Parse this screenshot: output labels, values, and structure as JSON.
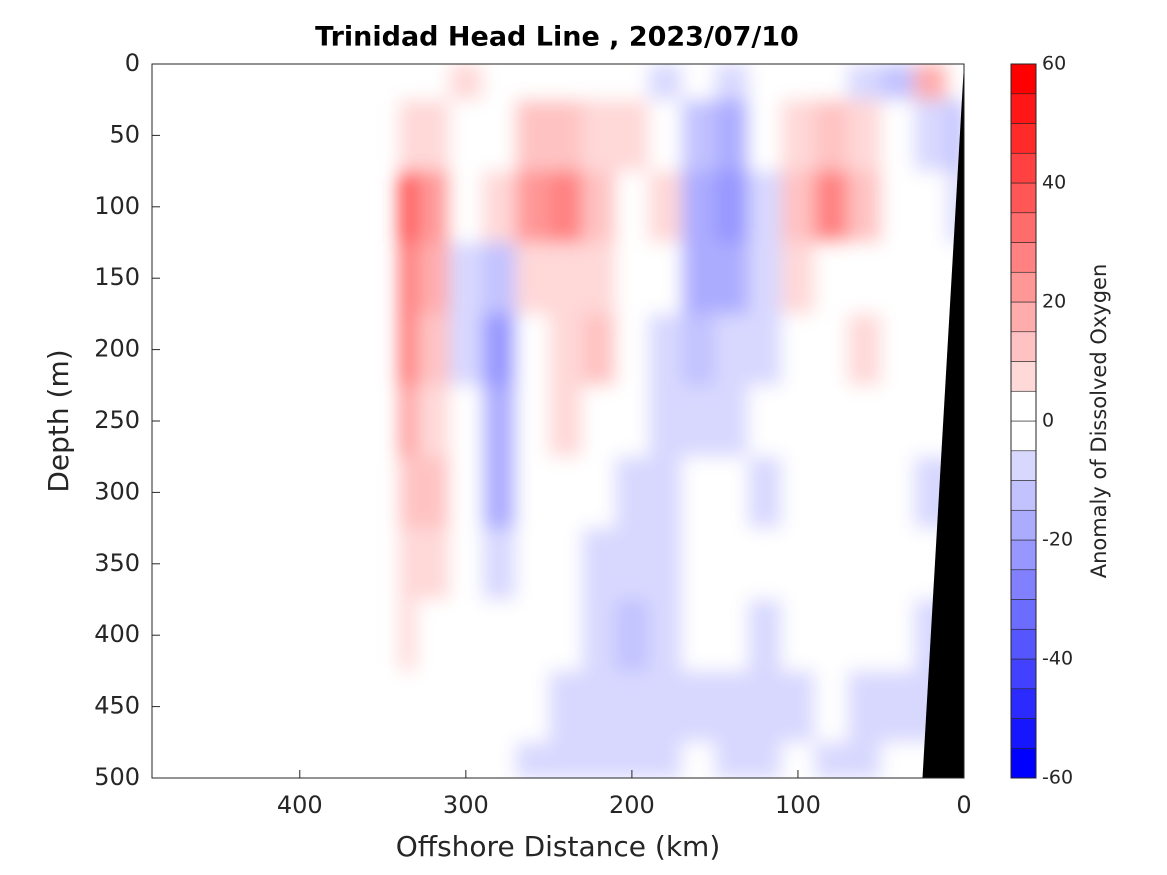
{
  "chart_data": {
    "type": "contourf",
    "title": "Trinidad Head Line , 2023/07/10",
    "x_label": "Offshore Distance (km)",
    "y_label": "Depth (m)",
    "colorbar_label": "Anomaly of Dissolved Oxygen",
    "xlim": [
      489,
      0
    ],
    "xticks": [
      400,
      300,
      200,
      100,
      0
    ],
    "ylim": [
      0,
      500
    ],
    "yticks": [
      0,
      50,
      100,
      150,
      200,
      250,
      300,
      350,
      400,
      450,
      500
    ],
    "clim": [
      -60,
      60
    ],
    "cticks": [
      -60,
      -40,
      -20,
      0,
      20,
      40,
      60
    ],
    "levels": [
      -60,
      -55,
      -50,
      -45,
      -40,
      -35,
      -30,
      -25,
      -20,
      -15,
      -10,
      -5,
      0,
      5,
      10,
      15,
      20,
      25,
      30,
      35,
      40,
      45,
      50,
      55,
      60
    ],
    "x": [
      340,
      320,
      300,
      280,
      260,
      240,
      220,
      200,
      180,
      160,
      140,
      120,
      100,
      80,
      60,
      40,
      20,
      0
    ],
    "y": [
      0,
      50,
      100,
      150,
      200,
      250,
      300,
      350,
      400,
      450,
      500
    ],
    "z": [
      [
        0,
        0,
        8,
        5,
        0,
        -3,
        -3,
        -3,
        -5,
        -3,
        -5,
        -3,
        -3,
        -3,
        -5,
        -12,
        20,
        -3
      ],
      [
        10,
        8,
        2,
        5,
        15,
        15,
        10,
        8,
        3,
        -10,
        -15,
        -3,
        10,
        15,
        10,
        3,
        -5,
        -10
      ],
      [
        45,
        25,
        3,
        10,
        25,
        30,
        15,
        5,
        8,
        -15,
        -20,
        -5,
        15,
        30,
        15,
        5,
        -3,
        -5
      ],
      [
        35,
        20,
        -5,
        -10,
        10,
        10,
        8,
        3,
        -3,
        -15,
        -15,
        -5,
        8,
        5,
        3,
        0,
        -3,
        -3
      ],
      [
        35,
        15,
        -5,
        -20,
        5,
        10,
        12,
        3,
        -5,
        -10,
        -8,
        -5,
        0,
        3,
        8,
        3,
        -3,
        -3
      ],
      [
        25,
        10,
        -3,
        -15,
        5,
        8,
        5,
        -3,
        -5,
        -5,
        -8,
        -3,
        0,
        3,
        5,
        0,
        -3,
        -3
      ],
      [
        15,
        12,
        -3,
        -15,
        0,
        3,
        -3,
        -5,
        -5,
        -3,
        -3,
        -5,
        -3,
        0,
        3,
        0,
        -5,
        -5
      ],
      [
        10,
        8,
        0,
        -8,
        0,
        3,
        -5,
        -8,
        -5,
        -3,
        0,
        -3,
        -3,
        0,
        5,
        0,
        -3,
        -3
      ],
      [
        10,
        5,
        0,
        -3,
        0,
        0,
        -5,
        -10,
        -5,
        0,
        -3,
        -5,
        -3,
        0,
        0,
        -3,
        -5,
        -5
      ],
      [
        0,
        0,
        0,
        0,
        -3,
        -5,
        -8,
        -8,
        -5,
        -5,
        -5,
        -8,
        -5,
        -3,
        -5,
        -5,
        -8,
        -8
      ],
      [
        -3,
        0,
        0,
        -3,
        -5,
        -8,
        -8,
        -5,
        -5,
        -3,
        -8,
        -5,
        -3,
        -5,
        -5,
        -3,
        -3,
        -3
      ]
    ],
    "seafloor": {
      "x": [
        0,
        25
      ],
      "depth": [
        0,
        500
      ],
      "color": "#000000"
    }
  }
}
